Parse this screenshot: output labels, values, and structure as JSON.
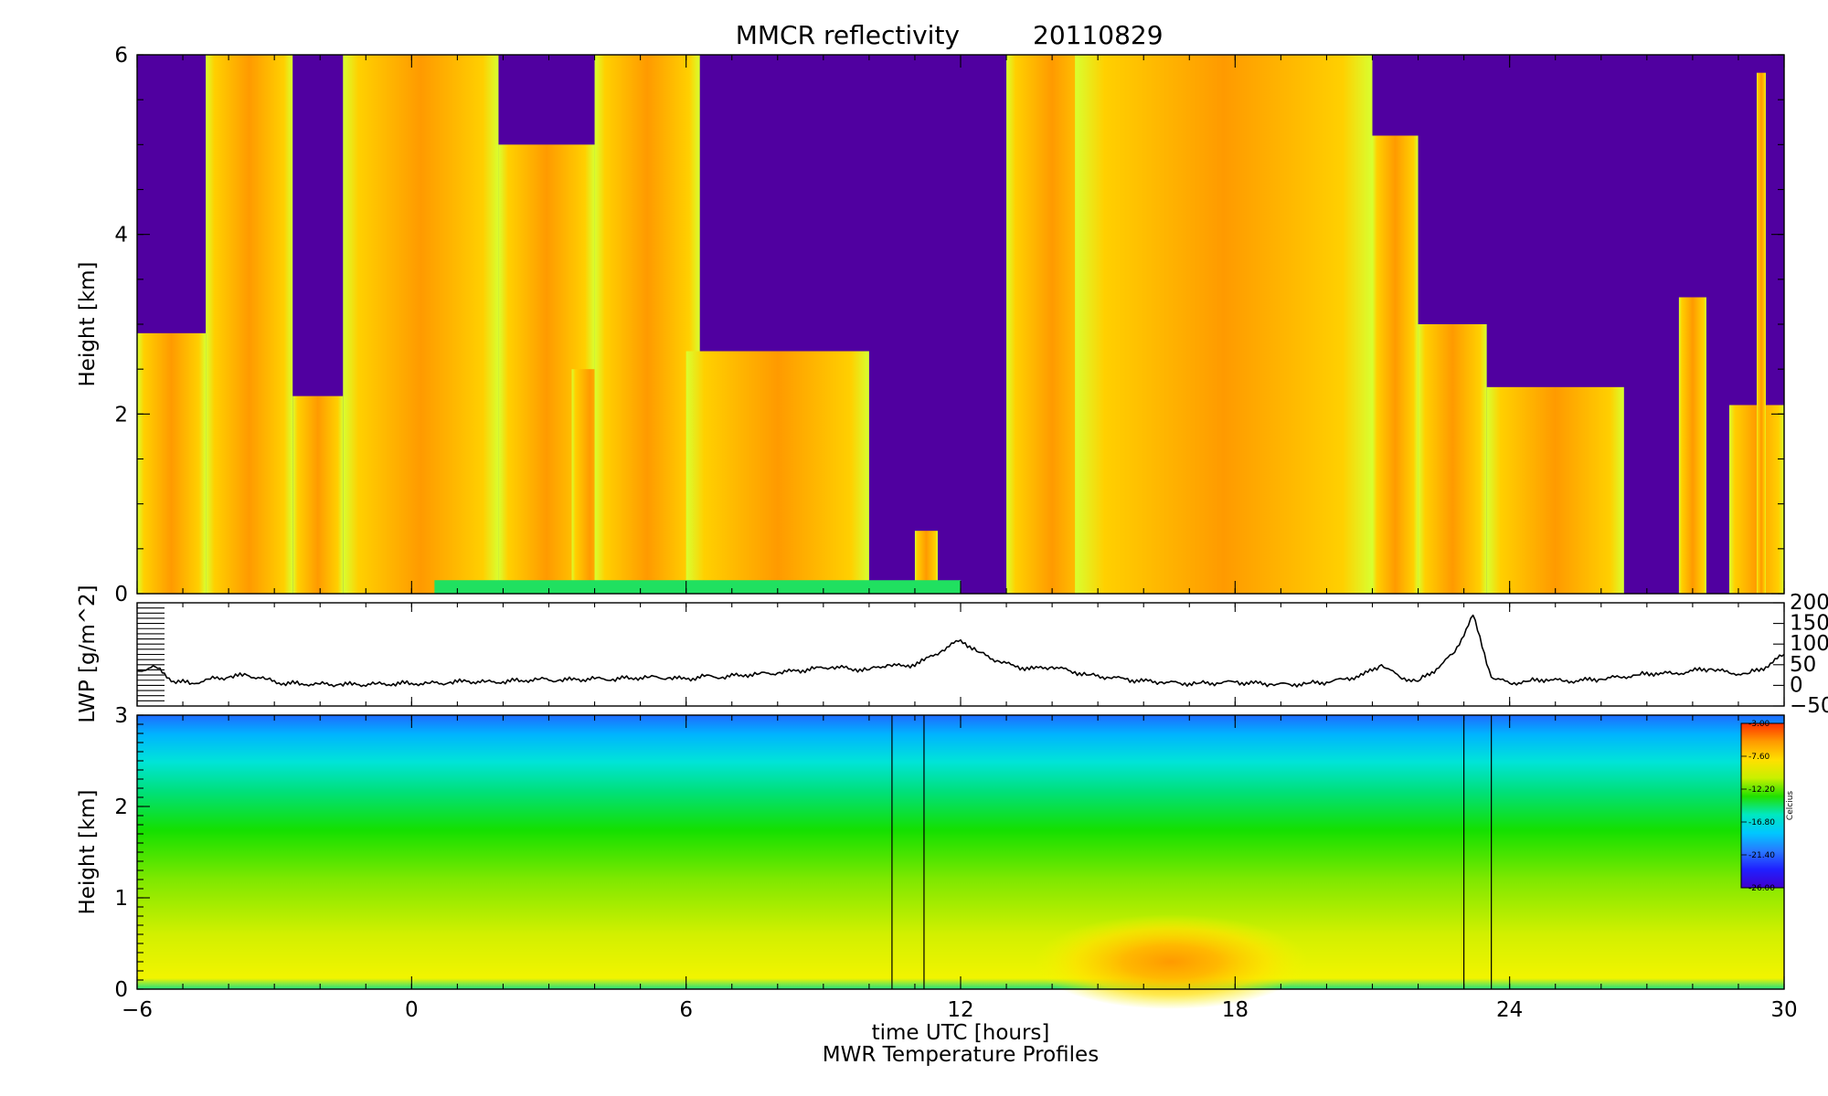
{
  "chart_data": [
    {
      "type": "heatmap",
      "title": "MMCR reflectivity",
      "date": "20110829",
      "ylabel": "Height [km]",
      "ylim": [
        0,
        6
      ],
      "xlim": [
        -6,
        30
      ],
      "y_ticks": [
        "0",
        "2",
        "4",
        "6"
      ],
      "colors": {
        "background": "#5000a0",
        "cloud_edge": "#d8ff30",
        "cloud_mid": "#ffd000",
        "cloud_core": "#ff9a00",
        "base": "#20e060"
      },
      "cloud_columns": [
        {
          "x": [
            -6.0,
            -4.5
          ],
          "top_km": 2.9
        },
        {
          "x": [
            -4.5,
            -2.6
          ],
          "top_km": 6.0
        },
        {
          "x": [
            -2.6,
            -1.5
          ],
          "top_km": 2.2
        },
        {
          "x": [
            -1.5,
            1.9
          ],
          "top_km": 6.0
        },
        {
          "x": [
            1.9,
            4.0
          ],
          "top_km": 5.0
        },
        {
          "x": [
            3.5,
            4.3
          ],
          "top_km": 2.5
        },
        {
          "x": [
            4.0,
            6.3
          ],
          "top_km": 6.0
        },
        {
          "x": [
            6.0,
            10.0
          ],
          "top_km": 2.7
        },
        {
          "x": [
            11.0,
            11.5
          ],
          "top_km": 0.7
        },
        {
          "x": [
            13.0,
            15.0
          ],
          "top_km": 6.0
        },
        {
          "x": [
            14.5,
            21.0
          ],
          "top_km": 6.0
        },
        {
          "x": [
            21.0,
            22.0
          ],
          "top_km": 5.1
        },
        {
          "x": [
            22.0,
            23.5
          ],
          "top_km": 3.0
        },
        {
          "x": [
            23.5,
            26.5
          ],
          "top_km": 2.3
        },
        {
          "x": [
            27.7,
            28.3
          ],
          "top_km": 3.3
        },
        {
          "x": [
            28.8,
            30.0
          ],
          "top_km": 2.1
        },
        {
          "x": [
            29.4,
            29.6
          ],
          "top_km": 5.8
        }
      ]
    },
    {
      "type": "line",
      "ylabel": "LWP [g/m^2]",
      "ylim": [
        -50,
        200
      ],
      "y_ticks": [
        "200",
        "150",
        "100",
        "50",
        "0",
        "−50"
      ],
      "series": [
        {
          "x": [
            -6,
            -5.6,
            -5.2,
            -4.8,
            -4.4,
            -4,
            -3.6,
            -3.2,
            -2.8,
            -2.4,
            -2,
            -1.6,
            -1.2,
            -0.8,
            -0.4,
            0,
            0.4,
            0.8,
            1.2,
            1.6,
            2,
            2.4,
            2.8,
            3.2,
            3.6,
            4,
            4.4,
            4.8,
            5.2,
            5.6,
            6,
            6.4,
            6.8,
            7.2,
            7.6,
            8,
            8.4,
            8.8,
            9.2,
            9.6,
            10,
            10.4,
            10.8,
            11.2,
            11.6,
            12,
            12.4,
            12.8,
            13.2,
            13.6,
            14,
            14.4,
            14.8,
            15.2,
            15.6,
            16,
            16.4,
            16.8,
            17.2,
            17.6,
            18,
            18.4,
            18.8,
            19.2,
            19.6,
            20,
            20.4,
            20.8,
            21.2,
            21.6,
            22,
            22.4,
            22.8,
            23.2,
            23.6,
            24,
            24.4,
            24.8,
            25.2,
            25.6,
            26,
            26.4,
            26.8,
            27.2,
            27.6,
            28,
            28.4,
            28.8,
            29.2,
            29.6,
            30
          ],
          "values": [
            35,
            45,
            10,
            5,
            15,
            20,
            25,
            15,
            5,
            4,
            3,
            2,
            2,
            3,
            4,
            5,
            5,
            6,
            10,
            8,
            9,
            12,
            15,
            12,
            14,
            16,
            15,
            18,
            20,
            18,
            15,
            22,
            20,
            25,
            28,
            30,
            35,
            40,
            45,
            40,
            38,
            50,
            45,
            60,
            85,
            110,
            80,
            60,
            45,
            40,
            45,
            35,
            25,
            20,
            15,
            10,
            8,
            5,
            5,
            6,
            8,
            5,
            3,
            2,
            5,
            8,
            15,
            25,
            50,
            20,
            10,
            40,
            80,
            170,
            20,
            5,
            10,
            15,
            10,
            12,
            15,
            20,
            25,
            30,
            28,
            35,
            40,
            30,
            28,
            45,
            75
          ]
        }
      ]
    },
    {
      "type": "heatmap",
      "ylabel": "Height [km]",
      "xlabel": "time UTC [hours]",
      "subtitle": "MWR Temperature Profiles",
      "ylim": [
        0,
        3
      ],
      "xlim": [
        -6,
        30
      ],
      "y_ticks": [
        "0",
        "1",
        "2",
        "3"
      ],
      "x_ticks": [
        "−6",
        "0",
        "6",
        "12",
        "18",
        "24",
        "30"
      ],
      "gaps": [
        [
          10.5,
          11.2
        ],
        [
          23.0,
          23.6
        ]
      ],
      "colorbar": {
        "unit": "Celcius",
        "ticks": [
          "-3.00",
          "-7.60",
          "-12.20",
          "-16.80",
          "-21.40",
          "-26.00"
        ],
        "colors": [
          "#ff3000",
          "#ff9a00",
          "#ffe000",
          "#c8f000",
          "#20e000",
          "#00e8c0",
          "#00c8ff",
          "#2878ff",
          "#2020ff",
          "#4000d0"
        ]
      },
      "warm_core": {
        "x": 16.6,
        "height_km": 0.3
      }
    }
  ]
}
